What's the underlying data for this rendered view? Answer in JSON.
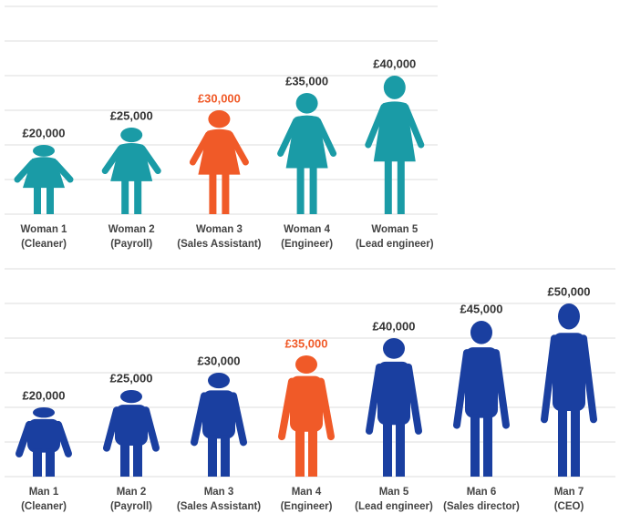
{
  "chart_data": [
    {
      "type": "pictogram",
      "figure": "woman",
      "categories": [
        "Woman 1",
        "Woman 2",
        "Woman 3",
        "Woman 4",
        "Woman 5"
      ],
      "roles": [
        "(Cleaner)",
        "(Payroll)",
        "(Sales Assistant)",
        "(Engineer)",
        "(Lead engineer)"
      ],
      "values": [
        20000,
        25000,
        30000,
        35000,
        40000
      ],
      "value_labels": [
        "£20,000",
        "£25,000",
        "£30,000",
        "£35,000",
        "£40,000"
      ],
      "color": "#1a9ba6",
      "highlight_color": "#f05a28",
      "highlight_index": 2,
      "ylim": [
        0,
        60000
      ],
      "yticks": [
        0,
        10000,
        20000,
        30000,
        40000,
        50000,
        60000
      ],
      "grid": true
    },
    {
      "type": "pictogram",
      "figure": "man",
      "categories": [
        "Man 1",
        "Man 2",
        "Man 3",
        "Man 4",
        "Man 5",
        "Man 6",
        "Man 7"
      ],
      "roles": [
        "(Cleaner)",
        "(Payroll)",
        "(Sales Assistant)",
        "(Engineer)",
        "(Lead engineer)",
        "(Sales director)",
        "(CEO)"
      ],
      "values": [
        20000,
        25000,
        30000,
        35000,
        40000,
        45000,
        50000
      ],
      "value_labels": [
        "£20,000",
        "£25,000",
        "£30,000",
        "£35,000",
        "£40,000",
        "£45,000",
        "£50,000"
      ],
      "color": "#1a3fa0",
      "highlight_color": "#f05a28",
      "highlight_index": 3,
      "ylim": [
        0,
        60000
      ],
      "yticks": [
        0,
        10000,
        20000,
        30000,
        40000,
        50000,
        60000
      ],
      "grid": true
    }
  ]
}
